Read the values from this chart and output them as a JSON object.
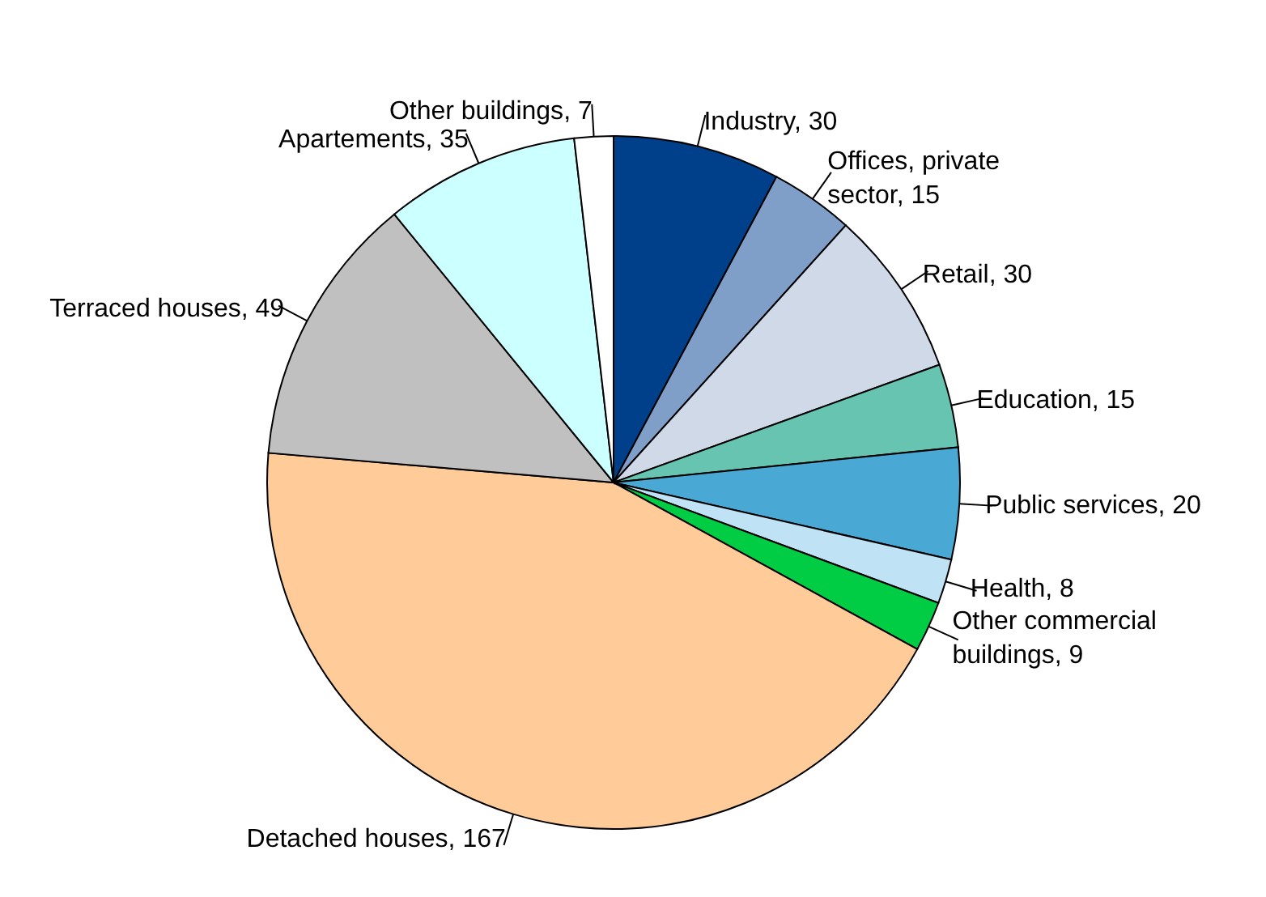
{
  "chart_data": {
    "type": "pie",
    "categories": [
      "Industry",
      "Offices, private sector",
      "Retail",
      "Education",
      "Public services",
      "Health",
      "Other commercial buildings",
      "Detached houses",
      "Terraced houses",
      "Apartements",
      "Other buildings"
    ],
    "values": [
      30,
      15,
      30,
      15,
      20,
      8,
      9,
      167,
      49,
      35,
      7
    ],
    "value_labels": [
      ", 30",
      ", 15",
      ", 30",
      ", 15",
      ", 20",
      ", 8",
      ", 9",
      ", 167",
      ", 49",
      ", 35",
      ", 7"
    ],
    "colors": [
      "#003f8a",
      "#7f9fc8",
      "#cfd9e8",
      "#66c4b0",
      "#4aa8d4",
      "#bfe3f5",
      "#00cc44",
      "#ffcc99",
      "#c0c0c0",
      "#ccffff",
      "#ffffff"
    ],
    "legend": false
  }
}
